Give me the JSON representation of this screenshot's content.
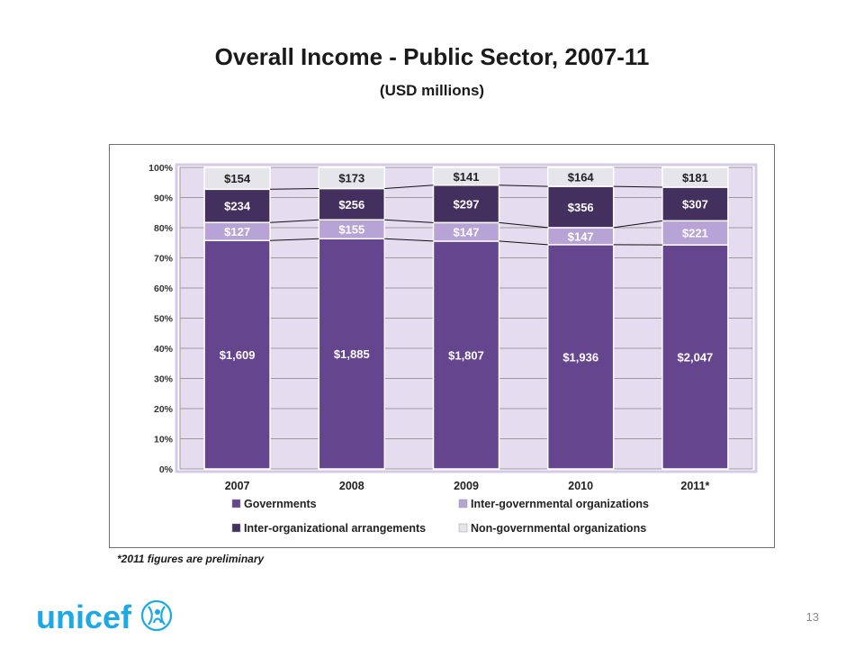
{
  "slide": {
    "title": "Overall Income - Public Sector, 2007-11",
    "subtitle": "(USD millions)",
    "footnote": "*2011 figures are preliminary",
    "page_number": "13",
    "logo_text": "unicef"
  },
  "colors": {
    "governments": "#66458f",
    "inter_governmental": "#b7a3d6",
    "inter_organizational": "#43305e",
    "non_governmental": "#e6e6ea",
    "plot_bg": "#e5dcf0",
    "logo": "#1ca9e6"
  },
  "chart_data": {
    "type": "bar",
    "stacked": "percent",
    "categories": [
      "2007",
      "2008",
      "2009",
      "2010",
      "2011*"
    ],
    "series": [
      {
        "name": "Governments",
        "values": [
          1609,
          1885,
          1807,
          1936,
          2047
        ],
        "labels": [
          "$1,609",
          "$1,885",
          "$1,807",
          "$1,936",
          "$2,047"
        ]
      },
      {
        "name": "Inter-governmental organizations",
        "values": [
          127,
          155,
          147,
          147,
          221
        ],
        "labels": [
          "$127",
          "$155",
          "$147",
          "$147",
          "$221"
        ]
      },
      {
        "name": "Inter-organizational arrangements",
        "values": [
          234,
          256,
          297,
          356,
          307
        ],
        "labels": [
          "$234",
          "$256",
          "$297",
          "$356",
          "$307"
        ]
      },
      {
        "name": "Non-governmental organizations",
        "values": [
          154,
          173,
          141,
          164,
          181
        ],
        "labels": [
          "$154",
          "$173",
          "$141",
          "$164",
          "$181"
        ]
      }
    ],
    "yticks": [
      "0%",
      "10%",
      "20%",
      "30%",
      "40%",
      "50%",
      "60%",
      "70%",
      "80%",
      "90%",
      "100%"
    ],
    "ylim": [
      0,
      100
    ],
    "grid": true,
    "series_lines": true,
    "legend_position": "bottom",
    "legend_order": [
      0,
      1,
      2,
      3
    ]
  }
}
